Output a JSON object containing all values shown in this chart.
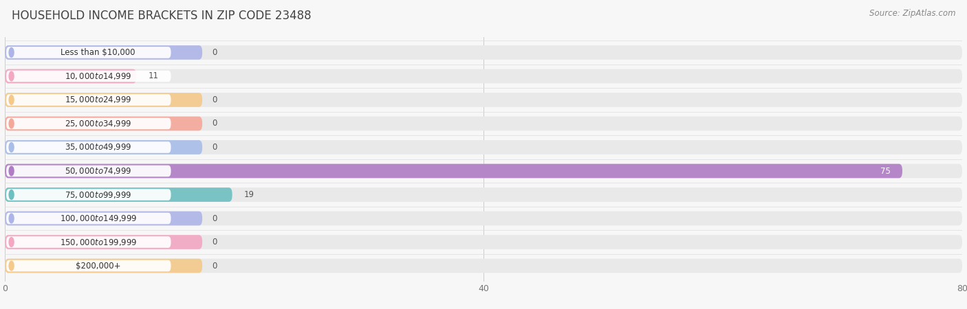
{
  "title": "HOUSEHOLD INCOME BRACKETS IN ZIP CODE 23488",
  "source": "Source: ZipAtlas.com",
  "categories": [
    "Less than $10,000",
    "$10,000 to $14,999",
    "$15,000 to $24,999",
    "$25,000 to $34,999",
    "$35,000 to $49,999",
    "$50,000 to $74,999",
    "$75,000 to $99,999",
    "$100,000 to $149,999",
    "$150,000 to $199,999",
    "$200,000+"
  ],
  "values": [
    0,
    11,
    0,
    0,
    0,
    75,
    19,
    0,
    0,
    0
  ],
  "bar_colors": [
    "#adb5e8",
    "#f4a7c3",
    "#f5c98a",
    "#f5a89a",
    "#a8bde8",
    "#b07cc6",
    "#6dbfc0",
    "#adb5e8",
    "#f4a7c3",
    "#f5c98a"
  ],
  "xlim_max": 80,
  "xticks": [
    0,
    40,
    80
  ],
  "background_color": "#f7f7f7",
  "track_color": "#e9e9e9",
  "title_fontsize": 12,
  "source_fontsize": 8.5,
  "label_fontsize": 8.5,
  "value_fontsize": 8.5
}
